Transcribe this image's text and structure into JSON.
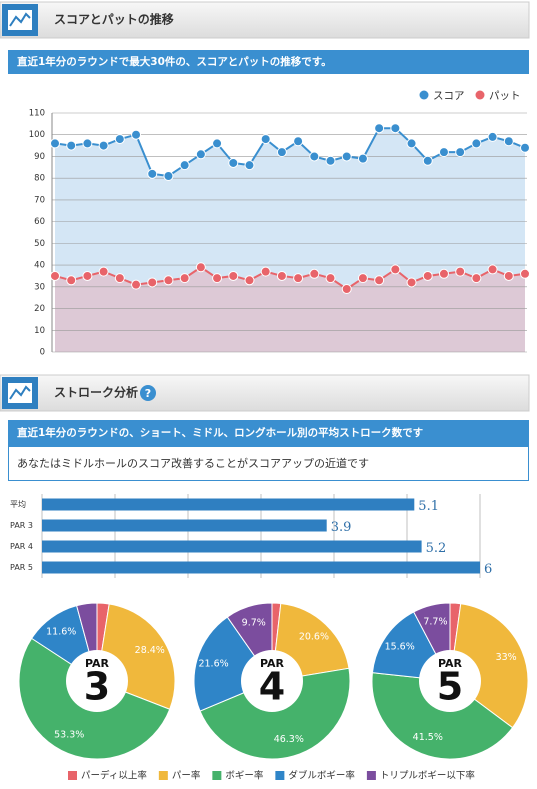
{
  "section1": {
    "title": "スコアとパットの推移",
    "banner": "直近1年分のラウンドで最大30件の、スコアとパットの推移です。"
  },
  "section2": {
    "title": "ストローク分析",
    "help": "?",
    "banner": "直近1年分のラウンドの、ショート、ミドル、ロングホール別の平均ストローク数です",
    "advice": "あなたはミドルホールのスコア改善することがスコアアップの近道です"
  },
  "chart_data": [
    {
      "type": "line",
      "categories": [
        null,
        null,
        null,
        null,
        null,
        null,
        null,
        null,
        null,
        null,
        null,
        null,
        null,
        null,
        null,
        null,
        null,
        null,
        null,
        null,
        null,
        null,
        null,
        null,
        null,
        null,
        null,
        null,
        null,
        null
      ],
      "series": [
        {
          "name": "スコア",
          "color": "#3a8fcf",
          "fill": "#d4e6f5",
          "values": [
            96,
            95,
            96,
            95,
            98,
            100,
            82,
            81,
            86,
            91,
            96,
            87,
            86,
            98,
            92,
            97,
            90,
            88,
            90,
            89,
            103,
            103,
            96,
            88,
            92,
            92,
            96,
            99,
            97,
            94
          ]
        },
        {
          "name": "パット",
          "color": "#e8646a",
          "fill": "#ddc9d6",
          "values": [
            35,
            33,
            35,
            37,
            34,
            31,
            32,
            33,
            34,
            39,
            34,
            35,
            33,
            37,
            35,
            34,
            36,
            34,
            29,
            34,
            33,
            38,
            32,
            35,
            36,
            37,
            34,
            38,
            35,
            36
          ]
        }
      ],
      "ylim": [
        0,
        110
      ],
      "yticks": [
        0,
        10,
        20,
        30,
        40,
        50,
        60,
        70,
        80,
        90,
        100,
        110
      ],
      "grid": true,
      "legend": "top-right"
    },
    {
      "type": "hbar",
      "categories": [
        "平均",
        "PAR 3",
        "PAR 4",
        "PAR 5"
      ],
      "values": [
        5.1,
        3.9,
        5.2,
        6
      ],
      "color": "#2f7fc1",
      "xlim": [
        0,
        6
      ],
      "xticks": [
        0,
        1,
        2,
        3,
        4,
        5,
        6
      ],
      "grid": true
    },
    {
      "type": "pie",
      "label": "PAR",
      "number": 3,
      "values": [
        2.5,
        28.4,
        53.3,
        11.6,
        4.2
      ],
      "value_labels": [
        null,
        "28.4%",
        "53.3%",
        "11.6%",
        null
      ]
    },
    {
      "type": "pie",
      "label": "PAR",
      "number": 4,
      "values": [
        1.8,
        20.6,
        46.3,
        21.6,
        9.7
      ],
      "value_labels": [
        null,
        "20.6%",
        "46.3%",
        "21.6%",
        "9.7%"
      ]
    },
    {
      "type": "pie",
      "label": "PAR",
      "number": 5,
      "values": [
        2.2,
        33,
        41.5,
        15.6,
        7.7
      ],
      "value_labels": [
        null,
        "33%",
        "41.5%",
        "15.6%",
        "7.7%"
      ]
    }
  ],
  "pie_legend": {
    "labels": [
      "パーディ以上率",
      "パー率",
      "ボギー率",
      "ダブルボギー率",
      "トリプルボギー以下率"
    ],
    "colors": [
      "#e8646a",
      "#f0b83c",
      "#45b26b",
      "#2f85c8",
      "#7b4d9e"
    ]
  }
}
